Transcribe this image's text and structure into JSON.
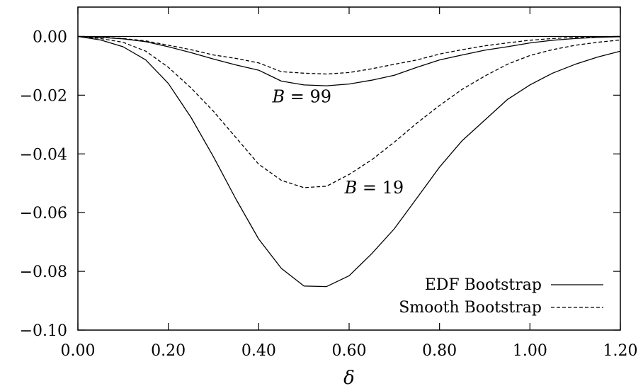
{
  "chart_data": {
    "type": "line",
    "title": "",
    "xlabel": "δ",
    "ylabel": "",
    "xlim": [
      0.0,
      1.2
    ],
    "ylim": [
      -0.1,
      0.01
    ],
    "grid": false,
    "legend_position": "bottom-right",
    "x_ticks": [
      0.0,
      0.2,
      0.4,
      0.6,
      0.8,
      1.0,
      1.2
    ],
    "x_tick_labels": [
      "0.00",
      "0.20",
      "0.40",
      "0.60",
      "0.80",
      "1.00",
      "1.20"
    ],
    "y_ticks": [
      0.0,
      -0.02,
      -0.04,
      -0.06,
      -0.08,
      -0.1
    ],
    "y_tick_labels": [
      "0.00",
      "−0.02",
      "−0.04",
      "−0.06",
      "−0.08",
      "−0.10"
    ],
    "reference_line": 0.0,
    "annotations": [
      {
        "var": "B",
        "eq": " = ",
        "num": "99",
        "x": 0.43,
        "y": -0.0225
      },
      {
        "var": "B",
        "eq": " = ",
        "num": "19",
        "x": 0.59,
        "y": -0.0535
      }
    ],
    "x": [
      0.0,
      0.05,
      0.1,
      0.15,
      0.2,
      0.25,
      0.3,
      0.35,
      0.4,
      0.45,
      0.5,
      0.55,
      0.6,
      0.65,
      0.7,
      0.75,
      0.8,
      0.85,
      0.9,
      0.95,
      1.0,
      1.05,
      1.1,
      1.15,
      1.2
    ],
    "series": [
      {
        "name": "EDF Bootstrap",
        "style": "solid",
        "group": "B = 19",
        "values": [
          0.0,
          -0.0012,
          -0.0035,
          -0.008,
          -0.016,
          -0.0275,
          -0.041,
          -0.0555,
          -0.069,
          -0.079,
          -0.085,
          -0.0852,
          -0.0815,
          -0.074,
          -0.0655,
          -0.055,
          -0.0445,
          -0.0355,
          -0.0285,
          -0.0215,
          -0.0165,
          -0.0125,
          -0.0095,
          -0.007,
          -0.005
        ]
      },
      {
        "name": "Smooth Bootstrap",
        "style": "dashed",
        "group": "B = 19",
        "values": [
          0.0,
          -0.0007,
          -0.002,
          -0.005,
          -0.0105,
          -0.0175,
          -0.0255,
          -0.0345,
          -0.0435,
          -0.049,
          -0.0515,
          -0.051,
          -0.047,
          -0.042,
          -0.036,
          -0.0295,
          -0.0235,
          -0.018,
          -0.0135,
          -0.0095,
          -0.0065,
          -0.0045,
          -0.003,
          -0.002,
          -0.0012
        ]
      },
      {
        "name": "",
        "style": "solid",
        "group": "B = 99",
        "values": [
          0.0,
          -0.0003,
          -0.0008,
          -0.0018,
          -0.0035,
          -0.0055,
          -0.0077,
          -0.0097,
          -0.0115,
          -0.0152,
          -0.0165,
          -0.0168,
          -0.0162,
          -0.0149,
          -0.0132,
          -0.0105,
          -0.008,
          -0.0063,
          -0.0047,
          -0.0035,
          -0.0022,
          -0.0013,
          -0.0007,
          -0.0003,
          -0.0001
        ]
      },
      {
        "name": "",
        "style": "dashed",
        "group": "B = 99",
        "values": [
          0.0,
          -0.0002,
          -0.0007,
          -0.0015,
          -0.003,
          -0.0045,
          -0.0063,
          -0.0075,
          -0.009,
          -0.012,
          -0.0125,
          -0.0128,
          -0.0123,
          -0.011,
          -0.0095,
          -0.008,
          -0.006,
          -0.0045,
          -0.0032,
          -0.0022,
          -0.0013,
          -0.0007,
          -0.0003,
          -0.0001,
          0.0
        ]
      }
    ]
  }
}
